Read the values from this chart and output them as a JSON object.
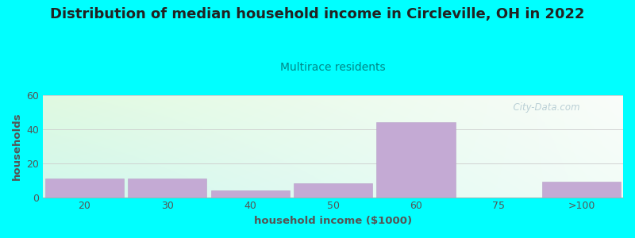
{
  "title": "Distribution of median household income in Circleville, OH in 2022",
  "subtitle": "Multirace residents",
  "xlabel": "household income ($1000)",
  "ylabel": "households",
  "background_color": "#00FFFF",
  "bar_color": "#c4aad4",
  "bar_edge_color": "#b8a0c8",
  "categories": [
    "20",
    "30",
    "40",
    "50",
    "60",
    "75",
    ">100"
  ],
  "values": [
    11,
    11,
    4,
    8,
    44,
    0,
    9
  ],
  "ylim": [
    0,
    60
  ],
  "yticks": [
    0,
    20,
    40,
    60
  ],
  "title_fontsize": 13,
  "subtitle_fontsize": 10,
  "axis_label_fontsize": 9.5,
  "tick_fontsize": 9,
  "watermark_text": "City-Data.com",
  "watermark_color": "#b0c8d0",
  "title_color": "#222222",
  "subtitle_color": "#008888",
  "axis_label_color": "#555555",
  "tick_color": "#555555"
}
